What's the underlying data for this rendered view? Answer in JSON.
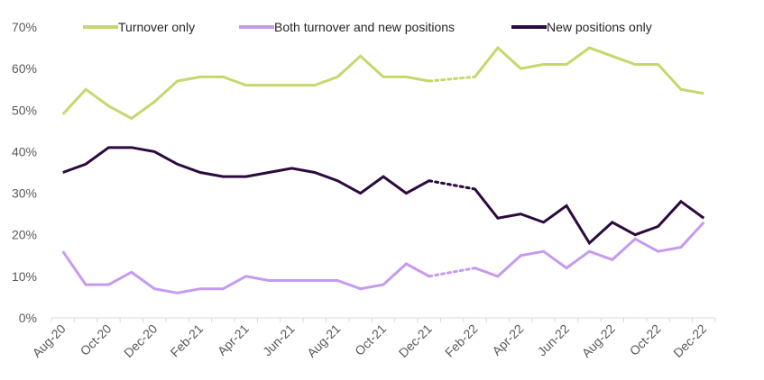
{
  "chart_data": {
    "type": "line",
    "categories": [
      "Aug-20",
      "Sep-20",
      "Oct-20",
      "Nov-20",
      "Dec-20",
      "Jan-21",
      "Feb-21",
      "Mar-21",
      "Apr-21",
      "May-21",
      "Jun-21",
      "Jul-21",
      "Aug-21",
      "Sep-21",
      "Oct-21",
      "Nov-21",
      "Dec-21",
      "Jan-22",
      "Feb-22",
      "Mar-22",
      "Apr-22",
      "May-22",
      "Jun-22",
      "Jul-22",
      "Aug-22",
      "Sep-22",
      "Oct-22",
      "Nov-22",
      "Dec-22"
    ],
    "x_tick_labels": [
      "Aug-20",
      "Oct-20",
      "Dec-20",
      "Feb-21",
      "Apr-21",
      "Jun-21",
      "Aug-21",
      "Oct-21",
      "Dec-21",
      "Feb-22",
      "Apr-22",
      "Jun-22",
      "Aug-22",
      "Oct-22",
      "Dec-22"
    ],
    "y_tick_labels": [
      "0%",
      "10%",
      "20%",
      "30%",
      "40%",
      "50%",
      "60%",
      "70%"
    ],
    "ylim": [
      0,
      70
    ],
    "y_unit": "%",
    "gap_category": "Jan-22",
    "gap_style": "dotted",
    "grid": false,
    "legend_position": "top",
    "series": [
      {
        "name": "Turnover only",
        "color": "#c5d86d",
        "values": [
          49,
          55,
          51,
          48,
          52,
          57,
          58,
          58,
          56,
          56,
          56,
          56,
          58,
          63,
          58,
          58,
          57,
          null,
          58,
          65,
          60,
          61,
          61,
          65,
          63,
          61,
          61,
          55,
          54
        ]
      },
      {
        "name": "Both turnover and new positions",
        "color": "#c49bf0",
        "values": [
          16,
          8,
          8,
          11,
          7,
          6,
          7,
          7,
          10,
          9,
          9,
          9,
          9,
          7,
          8,
          13,
          10,
          null,
          12,
          10,
          15,
          16,
          12,
          16,
          14,
          19,
          16,
          17,
          23
        ]
      },
      {
        "name": "New positions only",
        "color": "#2b0a3d",
        "values": [
          35,
          37,
          41,
          41,
          40,
          37,
          35,
          34,
          34,
          35,
          36,
          35,
          33,
          30,
          34,
          30,
          33,
          null,
          31,
          24,
          25,
          23,
          27,
          18,
          23,
          20,
          22,
          28,
          24
        ]
      }
    ]
  }
}
